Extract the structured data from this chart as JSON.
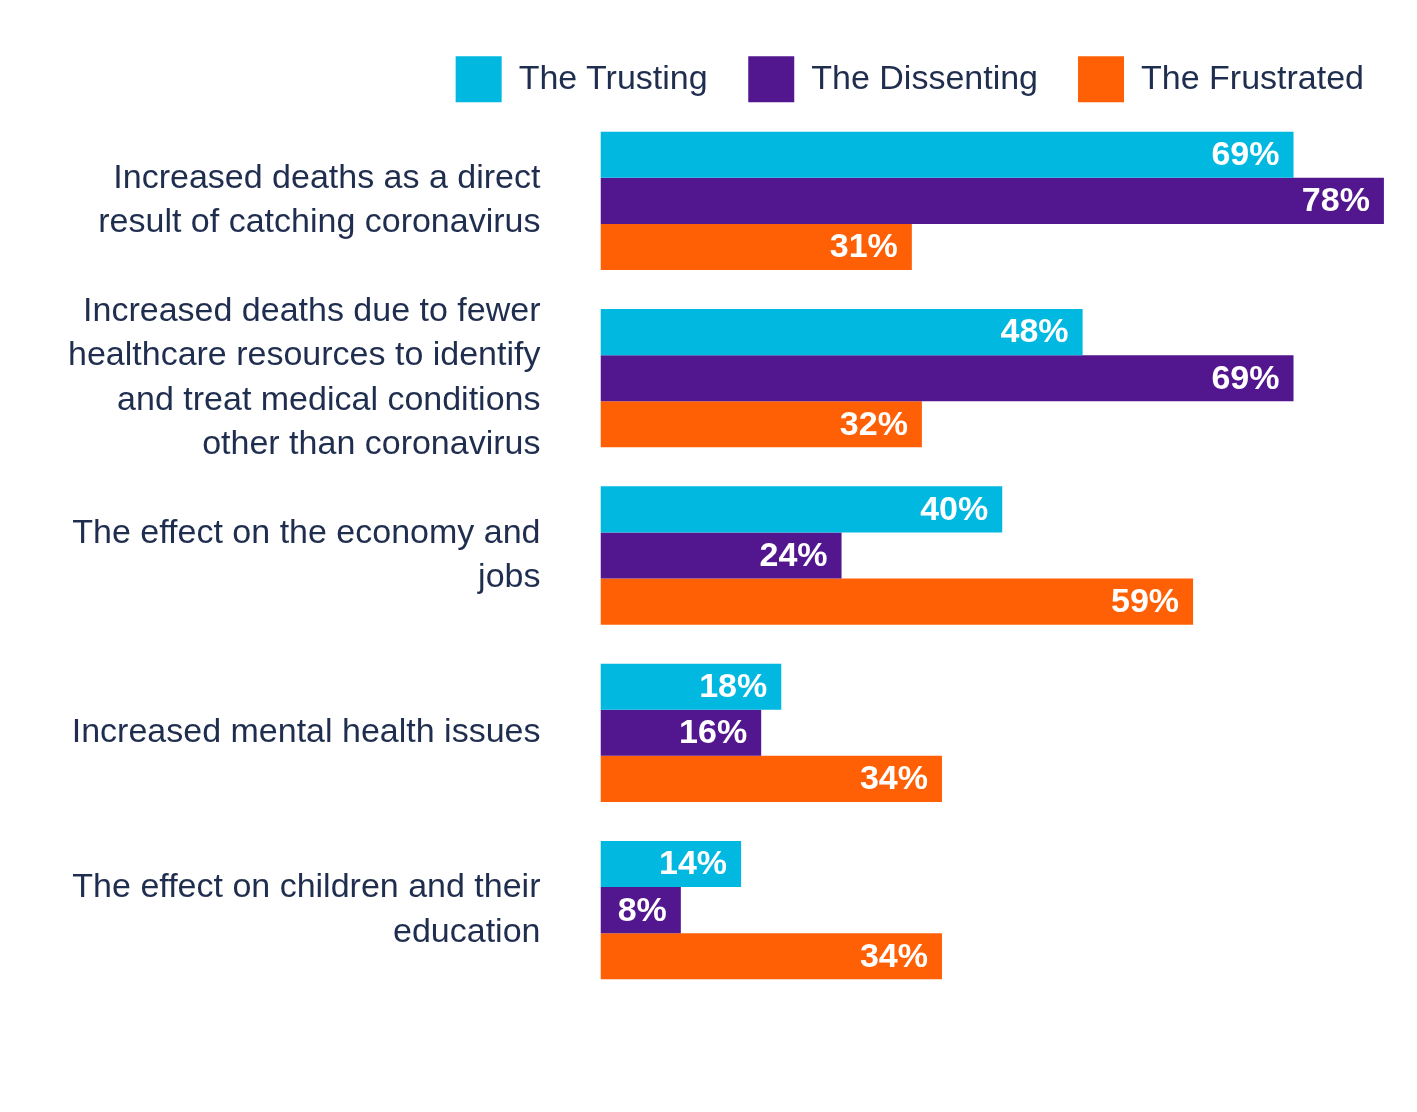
{
  "chart_data": {
    "type": "bar",
    "orientation": "horizontal",
    "legend": "top",
    "grid": false,
    "categories": [
      "Increased deaths as a direct result of catching coronavirus",
      "Increased deaths due to fewer healthcare resources to identify and treat medical conditions other than coronavirus",
      "The effect on the economy and jobs",
      "Increased mental health issues",
      "The effect on children and their education"
    ],
    "series": [
      {
        "name": "The Trusting",
        "color": "#00b8e0",
        "values": [
          69,
          48,
          40,
          18,
          14
        ],
        "value_labels": [
          "69%",
          "48%",
          "40%",
          "18%",
          "14%"
        ]
      },
      {
        "name": "The Dissenting",
        "color": "#52168f",
        "values": [
          78,
          69,
          24,
          16,
          8
        ],
        "value_labels": [
          "78%",
          "69%",
          "24%",
          "16%",
          "8%"
        ]
      },
      {
        "name": "The Frustrated",
        "color": "#ff6005",
        "values": [
          31,
          32,
          59,
          34,
          34
        ],
        "value_labels": [
          "31%",
          "32%",
          "59%",
          "34%",
          "34%"
        ]
      }
    ]
  }
}
